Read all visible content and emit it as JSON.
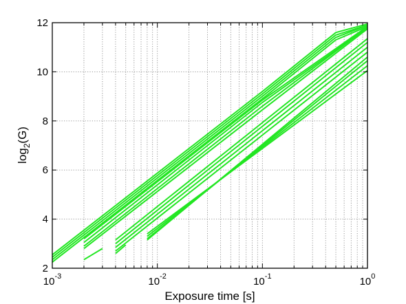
{
  "chart_data": {
    "type": "line",
    "title": "",
    "xlabel": "Exposure time [s]",
    "ylabel_base": "log",
    "ylabel_sub": "2",
    "ylabel_rest": "(G)",
    "x_scale": "log",
    "xlim": [
      0.001,
      1
    ],
    "ylim": [
      2,
      12
    ],
    "grid": true,
    "x_ticks": [
      {
        "value": 0.001,
        "base": "10",
        "exp": "-3"
      },
      {
        "value": 0.01,
        "base": "10",
        "exp": "-2"
      },
      {
        "value": 0.1,
        "base": "10",
        "exp": "-1"
      },
      {
        "value": 1,
        "base": "10",
        "exp": "0"
      }
    ],
    "y_ticks": [
      "2",
      "4",
      "6",
      "8",
      "10",
      "12"
    ],
    "line_color": "#22e622",
    "series": [
      {
        "x": [
          0.001,
          0.1,
          0.5,
          1
        ],
        "y": [
          2.55,
          9.2,
          11.6,
          11.95
        ]
      },
      {
        "x": [
          0.001,
          0.1,
          0.5,
          1
        ],
        "y": [
          2.45,
          9.1,
          11.5,
          11.9
        ]
      },
      {
        "x": [
          0.001,
          0.1,
          0.5,
          1
        ],
        "y": [
          2.35,
          9.0,
          11.4,
          11.9
        ]
      },
      {
        "x": [
          0.001,
          0.1,
          0.5,
          1
        ],
        "y": [
          2.25,
          8.9,
          11.3,
          11.85
        ]
      },
      {
        "x": [
          0.002,
          0.1,
          1
        ],
        "y": [
          3.2,
          8.85,
          11.85
        ]
      },
      {
        "x": [
          0.002,
          0.1,
          1
        ],
        "y": [
          3.05,
          8.75,
          11.8
        ]
      },
      {
        "x": [
          0.002,
          0.1,
          1
        ],
        "y": [
          2.9,
          8.6,
          11.8
        ]
      },
      {
        "x": [
          0.002,
          0.1,
          1
        ],
        "y": [
          2.8,
          8.45,
          11.75
        ]
      },
      {
        "x": [
          0.004,
          1
        ],
        "y": [
          3.15,
          11.35
        ]
      },
      {
        "x": [
          0.004,
          1
        ],
        "y": [
          3.0,
          11.2
        ]
      },
      {
        "x": [
          0.004,
          1
        ],
        "y": [
          2.85,
          11.0
        ]
      },
      {
        "x": [
          0.004,
          1
        ],
        "y": [
          2.7,
          10.8
        ]
      },
      {
        "x": [
          0.002,
          0.003
        ],
        "y": [
          2.35,
          2.8
        ]
      },
      {
        "x": [
          0.004,
          0.005
        ],
        "y": [
          2.6,
          2.95
        ]
      },
      {
        "x": [
          0.008,
          1
        ],
        "y": [
          3.15,
          10.6
        ]
      },
      {
        "x": [
          0.008,
          1
        ],
        "y": [
          3.2,
          10.45
        ]
      },
      {
        "x": [
          0.008,
          1
        ],
        "y": [
          3.3,
          10.25
        ]
      },
      {
        "x": [
          0.008,
          1
        ],
        "y": [
          3.4,
          10.05
        ]
      }
    ]
  }
}
